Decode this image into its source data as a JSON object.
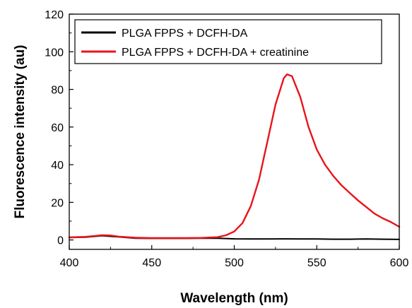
{
  "chart_data": {
    "type": "line",
    "title": "",
    "xlabel": "Wavelength (nm)",
    "ylabel": "Fluorescence intensity (au)",
    "xlim": [
      400,
      600
    ],
    "ylim": [
      -5,
      120
    ],
    "xticks": [
      400,
      450,
      500,
      550,
      600
    ],
    "yticks": [
      0,
      20,
      40,
      60,
      80,
      100,
      120
    ],
    "grid": false,
    "legend_position": "top-left",
    "series": [
      {
        "name": "PLGA FPPS + DCFH-DA",
        "color": "#000000",
        "x": [
          400,
          410,
          420,
          430,
          440,
          450,
          460,
          470,
          480,
          490,
          500,
          510,
          520,
          530,
          540,
          550,
          560,
          570,
          580,
          590,
          600
        ],
        "y": [
          1.3,
          1.5,
          2.2,
          1.6,
          0.9,
          0.8,
          0.8,
          0.8,
          0.9,
          0.9,
          0.6,
          0.5,
          0.5,
          0.6,
          0.5,
          0.5,
          0.4,
          0.4,
          0.5,
          0.4,
          0.3
        ]
      },
      {
        "name": "PLGA FPPS + DCFH-DA + creatinine",
        "color": "#e8141b",
        "x": [
          400,
          410,
          420,
          425,
          430,
          440,
          450,
          460,
          470,
          480,
          490,
          495,
          500,
          505,
          510,
          515,
          520,
          525,
          530,
          532,
          535,
          540,
          545,
          550,
          555,
          560,
          565,
          570,
          575,
          580,
          585,
          590,
          595,
          600
        ],
        "y": [
          1.4,
          1.7,
          2.5,
          2.4,
          1.8,
          1.2,
          1.0,
          1.0,
          1.0,
          1.1,
          1.5,
          2.5,
          4.5,
          9.0,
          18.0,
          32.0,
          52.0,
          72.0,
          86.0,
          88.0,
          87.0,
          76.0,
          60.0,
          48.0,
          40.0,
          34.0,
          29.0,
          25.0,
          21.0,
          17.5,
          14.0,
          11.5,
          9.5,
          7.0
        ]
      }
    ]
  }
}
